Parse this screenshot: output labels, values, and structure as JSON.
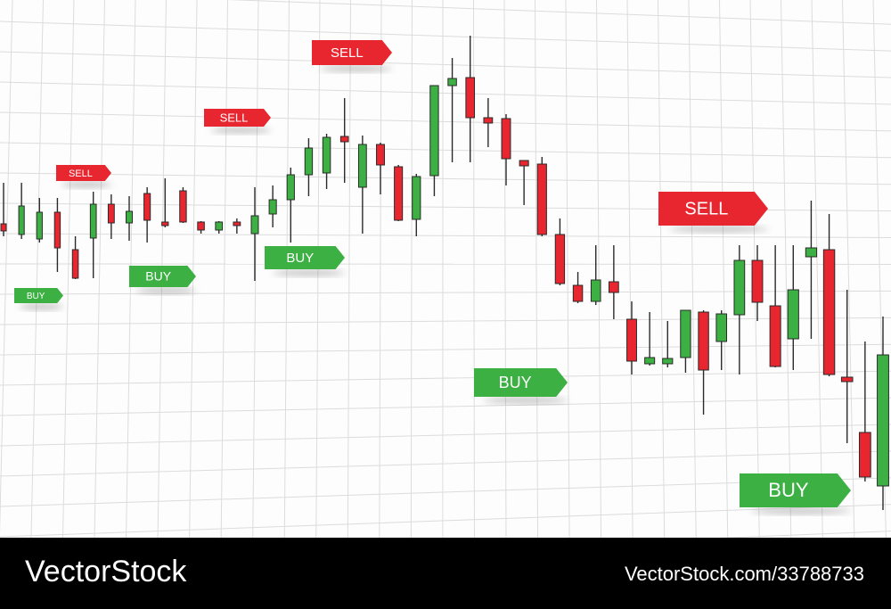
{
  "chart_data": {
    "type": "candlestick",
    "open": [
      349,
      337,
      332,
      362,
      320,
      333,
      371,
      350,
      383,
      351,
      386,
      351,
      342,
      351,
      338,
      360,
      376,
      404,
      406,
      447,
      390,
      438,
      413,
      354,
      403,
      504,
      513,
      468,
      467,
      420,
      416,
      337,
      280,
      262,
      284,
      242,
      192,
      192,
      199,
      250,
      217,
      247,
      308,
      257,
      220,
      312,
      320,
      177,
      115,
      55
    ],
    "high": [
      395,
      395,
      378,
      378,
      335,
      385,
      382,
      380,
      390,
      400,
      390,
      352,
      352,
      355,
      390,
      392,
      412,
      445,
      450,
      490,
      448,
      440,
      415,
      405,
      504,
      535,
      560,
      490,
      472,
      420,
      424,
      355,
      295,
      325,
      325,
      262,
      250,
      240,
      252,
      252,
      252,
      325,
      325,
      325,
      325,
      375,
      360,
      275,
      217,
      245
    ],
    "low": [
      335,
      332,
      328,
      295,
      287,
      288,
      332,
      330,
      328,
      345,
      350,
      338,
      338,
      338,
      285,
      345,
      328,
      380,
      388,
      395,
      338,
      382,
      352,
      335,
      380,
      418,
      418,
      435,
      392,
      370,
      335,
      280,
      260,
      258,
      242,
      180,
      190,
      188,
      182,
      135,
      185,
      180,
      240,
      188,
      185,
      220,
      178,
      103,
      60,
      28
    ],
    "close": [
      341,
      369,
      362,
      322,
      288,
      371,
      350,
      363,
      353,
      347,
      351,
      342,
      351,
      347,
      358,
      376,
      404,
      434,
      446,
      441,
      438,
      415,
      353,
      402,
      504,
      512,
      468,
      462,
      422,
      414,
      337,
      282,
      262,
      286,
      272,
      195,
      199,
      198,
      252,
      185,
      248,
      308,
      261,
      189,
      275,
      322,
      180,
      172,
      65,
      202
    ],
    "up_color": "#3cb043",
    "down_color": "#e8262f",
    "ylim": [
      0,
      600
    ],
    "grid": true,
    "annotations": [
      {
        "text": "SELL",
        "color": "#e8262f"
      },
      {
        "text": "BUY",
        "color": "#3cb043"
      },
      {
        "text": "SELL",
        "color": "#e8262f"
      },
      {
        "text": "BUY",
        "color": "#3cb043"
      },
      {
        "text": "SELL",
        "color": "#e8262f"
      },
      {
        "text": "BUY",
        "color": "#3cb043"
      },
      {
        "text": "BUY",
        "color": "#3cb043"
      },
      {
        "text": "SELL",
        "color": "#e8262f"
      },
      {
        "text": "BUY",
        "color": "#3cb043"
      }
    ]
  },
  "watermark": {
    "brand": "VectorStock",
    "id": "VectorStock.com/33788733"
  }
}
